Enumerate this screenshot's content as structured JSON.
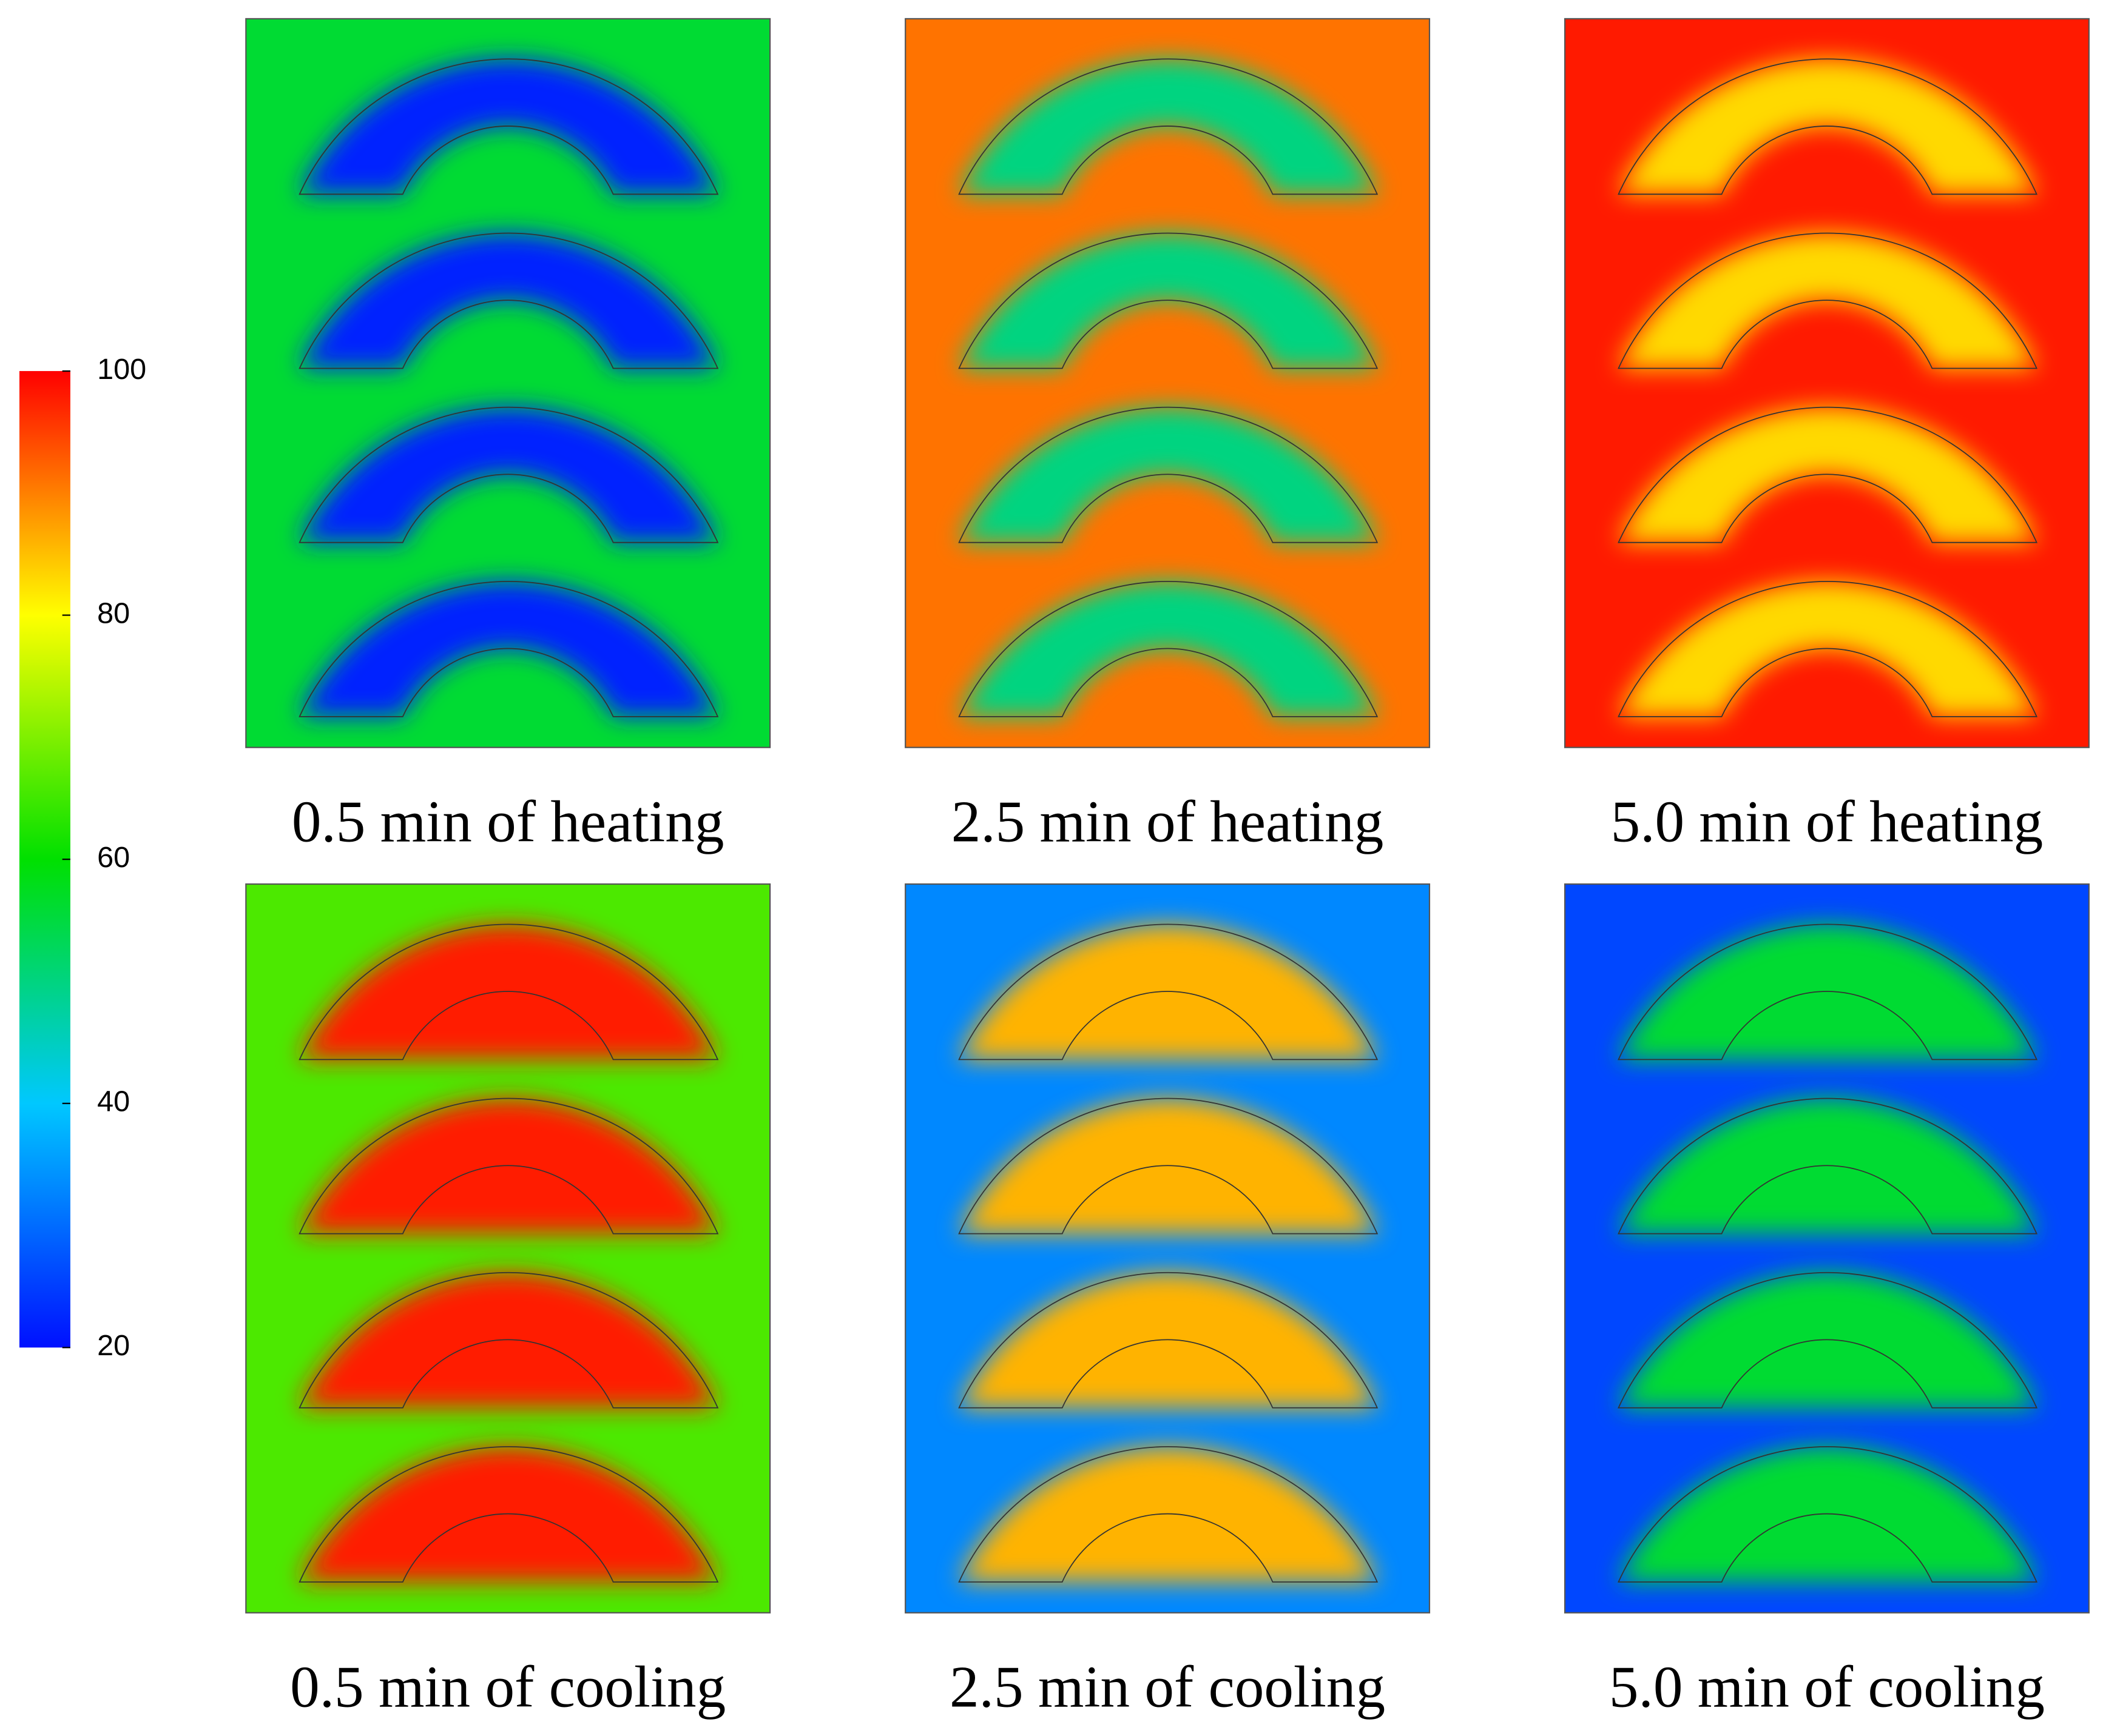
{
  "chart_data": {
    "type": "contour",
    "colorbar": {
      "lim": [
        20,
        100
      ],
      "ticks": [
        20,
        40,
        60,
        80,
        100
      ],
      "colors": [
        "#0010ff",
        "#00c8ff",
        "#00e000",
        "#ffff00",
        "#ff0000"
      ]
    },
    "panels": [
      {
        "caption": "0.5 min of heating",
        "background": 56,
        "core": 22
      },
      {
        "caption": "2.5 min of heating",
        "background": 91,
        "core": 50
      },
      {
        "caption": "5.0 min of heating",
        "background": 98,
        "core": 83
      },
      {
        "caption": "0.5 min of cooling",
        "background": 66,
        "core": 98
      },
      {
        "caption": "2.5 min of cooling",
        "background": 33,
        "core": 86
      },
      {
        "caption": "5.0 min of cooling",
        "background": 26,
        "core": 56
      }
    ]
  }
}
